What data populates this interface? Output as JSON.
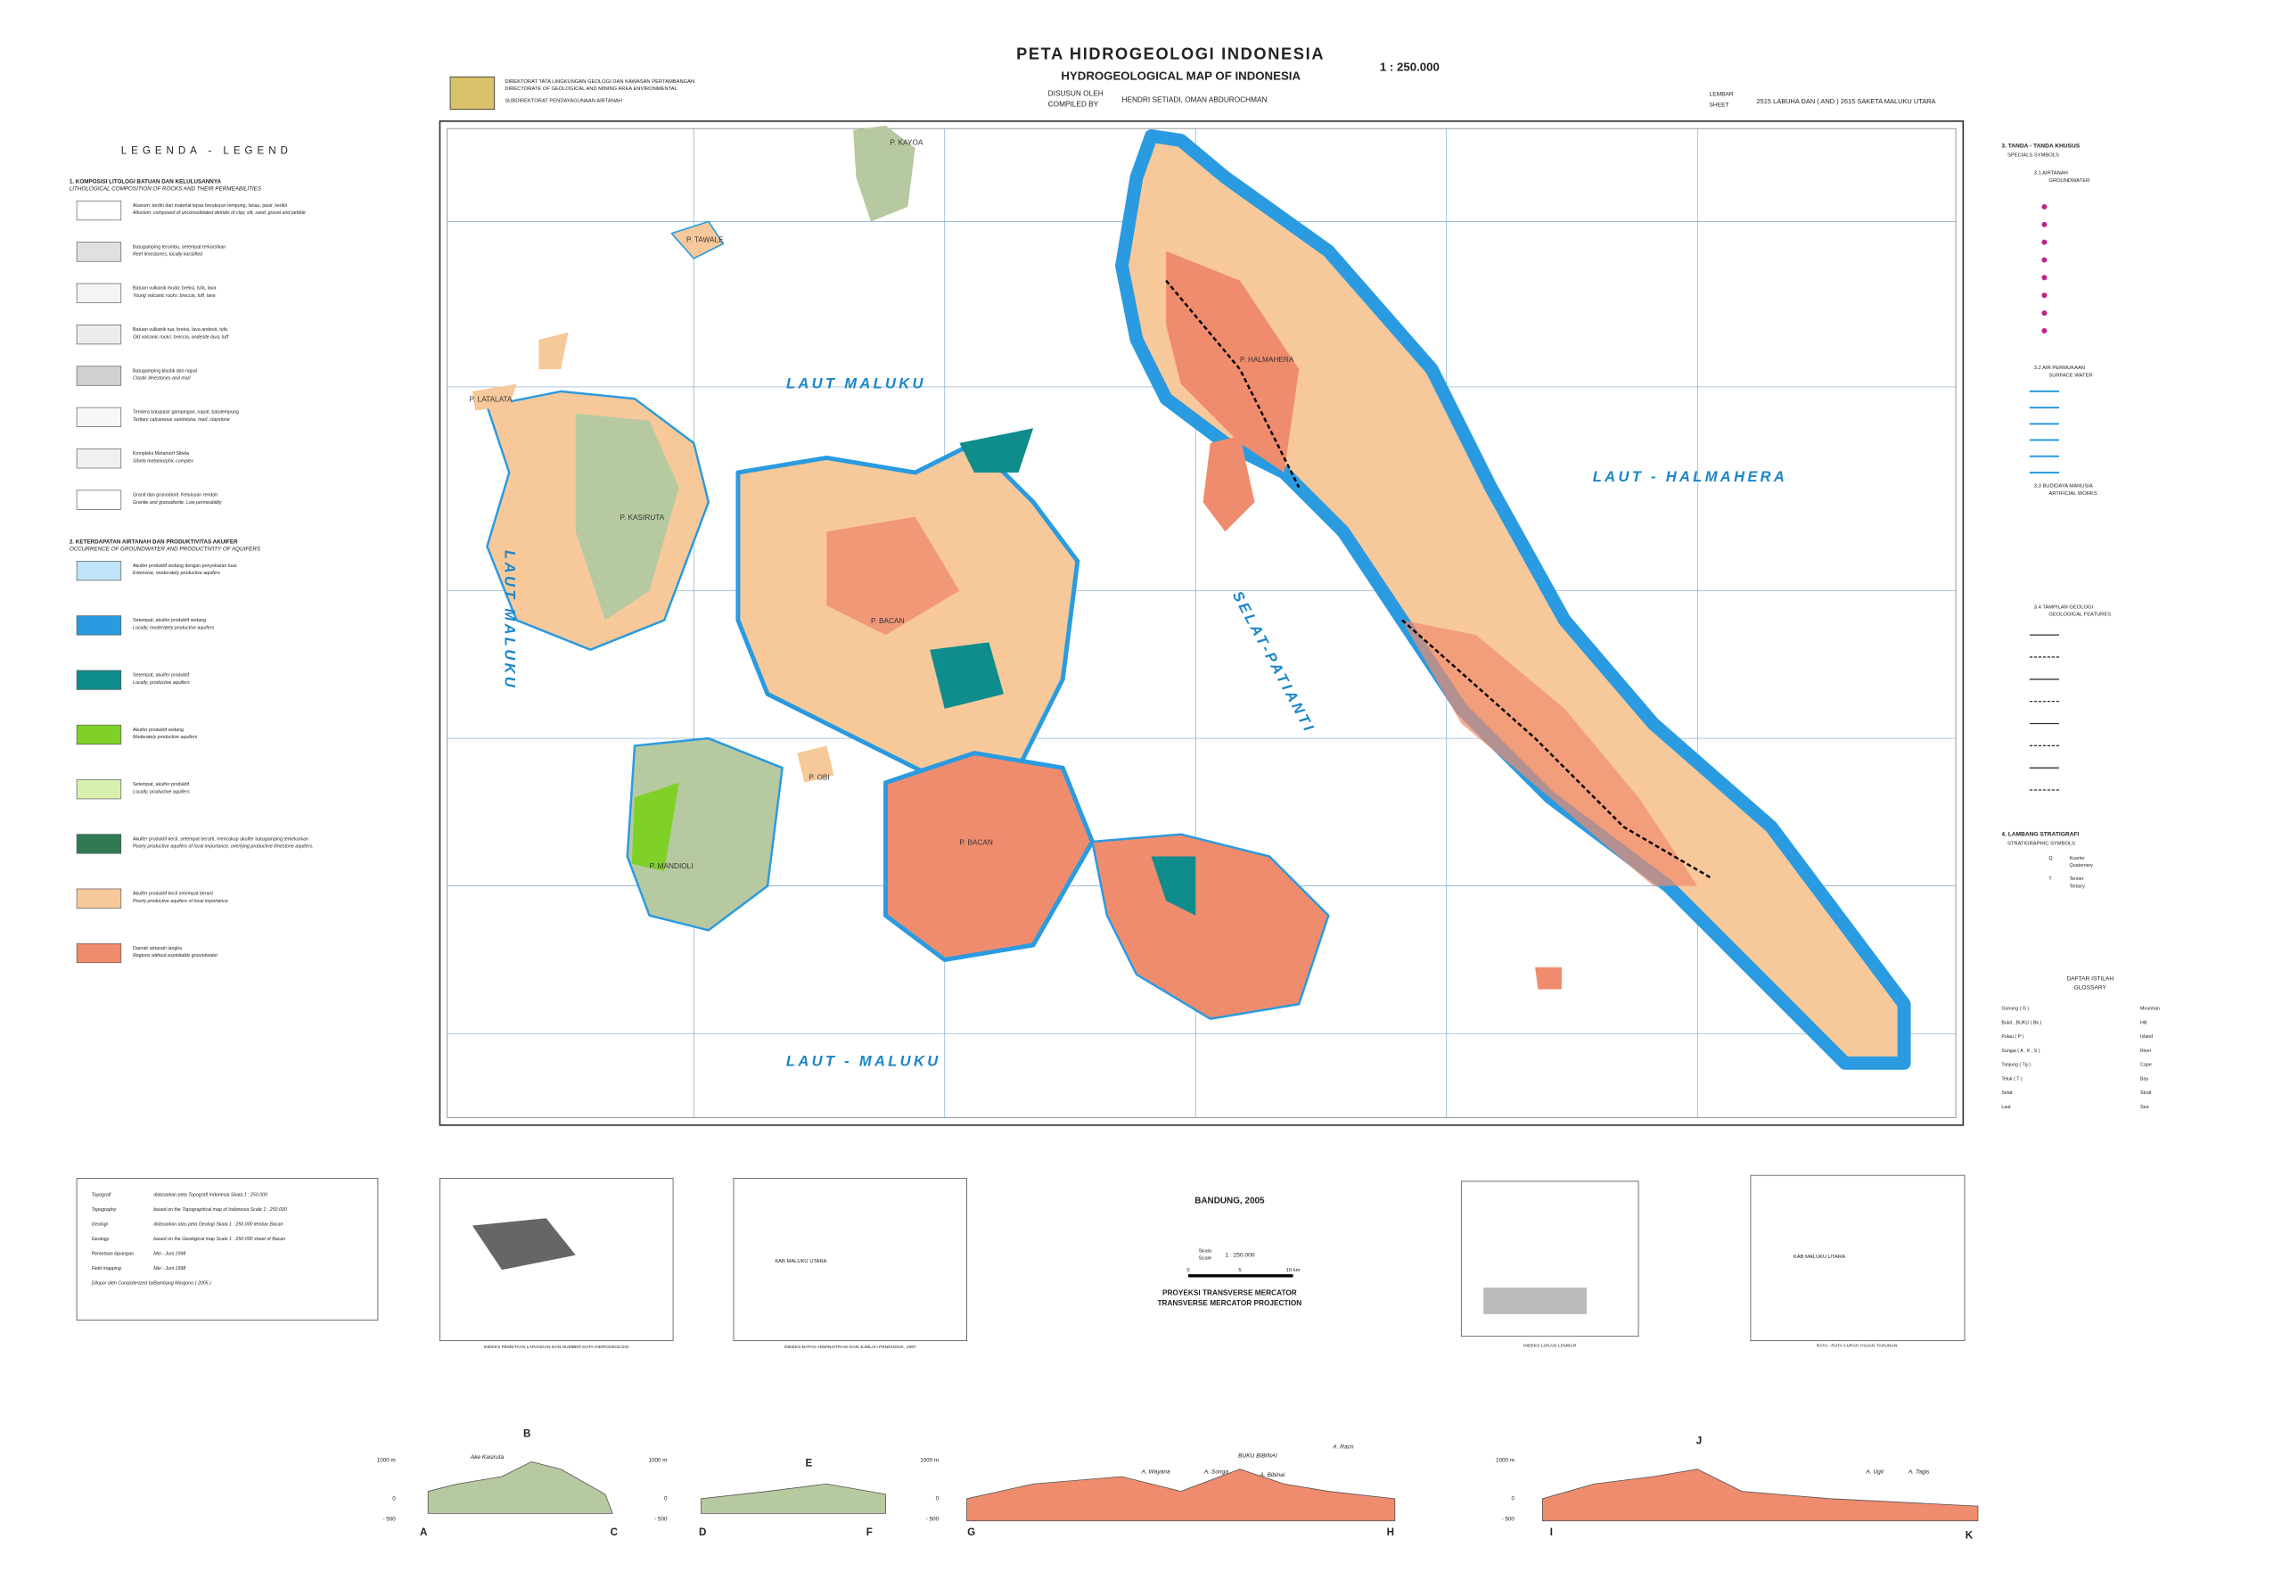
{
  "header": {
    "title": "PETA HIDROGEOLOGI INDONESIA",
    "subtitle": "HYDROGEOLOGICAL MAP OF INDONESIA",
    "scale": "1 : 250.000",
    "agency": [
      "DIREKTORAT TATA LINGKUNGAN GEOLOGI DAN KAWASAN PERTAMBANGAN",
      "DIRECTORATE OF GEOLOGICAL AND MINING AREA ENVIRONMENTAL",
      "SUBDIREKTORAT PENDAYAGUNAAN AIRTANAH"
    ],
    "compiled_label": [
      "DISUSUN OLEH",
      "COMPILED BY"
    ],
    "compiled_by": "HENDRI SETIADI, OMAN ABDUROCHMAN",
    "sheet_label": [
      "LEMBAR",
      "SHEET"
    ],
    "sheet": "2515 LABUHA DAN ( AND ) 2615 SAKETA MALUKU UTARA"
  },
  "legend": {
    "title": "LEGENDA - LEGEND",
    "sections": [
      {
        "heading": [
          "1. KOMPOSISI LITOLOGI BATUAN DAN KELULUSANNYA",
          "LITHOLOGICAL COMPOSITION OF ROCKS AND THEIR PERMEABILITIES"
        ],
        "items": [
          {
            "text": [
              "Aluvium: terdiri dari material lepas berukuran lempung, lanau, pasir, kerikil",
              "Alluvium: composed of unconsolidated detrials of clay, silt, sand, gravel and pebble"
            ],
            "color": "#ffffff"
          },
          {
            "text": [
              "Batugamping terumbu, setempat terkarstkan",
              "Reef limestones, locally karstified"
            ],
            "color": "#e0e0e0"
          },
          {
            "text": [
              "Batuan vulkanik muda: breksi, tufa, lava",
              "Young volcanic rocks: breccia, tuff, lava"
            ],
            "color": "#f4f4f4"
          },
          {
            "text": [
              "Batuan vulkanik tua: breksi, lava andesit, tufa",
              "Old volcanic rocks: breccia, andesite lava, tuff"
            ],
            "color": "#ececec"
          },
          {
            "text": [
              "Batugamping klastik dan napal",
              "Clastic limestones and marl"
            ],
            "color": "#d0d0d0"
          },
          {
            "text": [
              "Tersiera batupasir gampingan, napal, batulempung",
              "Tertiary calcareous sandstone, marl, claystone"
            ],
            "color": "#f8f8f8"
          },
          {
            "text": [
              "Kompleks Metamorf Sibela",
              "Sibela metamorphic complex"
            ],
            "color": "#f0f0f0"
          },
          {
            "text": [
              "Granit dan granodiorit. Kelulusan rendah",
              "Granite and granodiorite. Low permeability"
            ],
            "color": "#ffffff"
          }
        ]
      },
      {
        "heading": [
          "2. KETERDAPATAN AIRTANAH DAN PRODUKTIVITAS AKUIFER",
          "OCCURRENCE OF GROUNDWATER AND PRODUCTIVITY OF AQUIFERS"
        ],
        "items": [
          {
            "text": [
              "Akuifer produktif sedang dengan penyebaran luas",
              "Extensive, moderately productive aquifers"
            ],
            "color": "#bfe3f7"
          },
          {
            "text": [
              "Setempat, akuifer produktif sedang",
              "Locally, moderately productive aquifers"
            ],
            "color": "#2a9be0"
          },
          {
            "text": [
              "Setempat, akuifer produktif",
              "Locally, productive aquifers"
            ],
            "color": "#0f8c8c"
          },
          {
            "text": [
              "Akuifer produktif sedang",
              "Moderately productive aquifers"
            ],
            "color": "#7fd128"
          },
          {
            "text": [
              "Setempat, akuifer produktif",
              "Locally, productive aquifers"
            ],
            "color": "#d7f0b0"
          },
          {
            "text": [
              "Akuifer produktif kecil, setempat berarti, mencakup akuifer batugamping terkekarkan",
              "Poorly productive aquifers of local importance, overlying productive limestone aquifers."
            ],
            "color": "#2f7a52"
          },
          {
            "text": [
              "Akuifer produktif kecil setempat berarti",
              "Poorly productive aquifers of local importance"
            ],
            "color": "#f7c99a"
          },
          {
            "text": [
              "Daerah airtanah langka",
              "Regions without exploitable groundwater"
            ],
            "color": "#ef8c6e"
          }
        ]
      }
    ]
  },
  "specials": {
    "title": [
      "3. TANDA - TANDA KHUSUS",
      "SPECIALS SYMBOLS"
    ],
    "groups": [
      [
        "3.1  AIRTANAH",
        "GROUNDWATER"
      ],
      [
        "3.2  AIR PERMUKAAN",
        "SURFACE WATER"
      ],
      [
        "3.3  BUDIDAYA MANUSIA",
        "ARTIFICIAL WORKS"
      ],
      [
        "3.4  TAMPILAN GEOLOGI",
        "GEOLOGICAL FEATURES"
      ]
    ],
    "strat_title": [
      "4. LAMBANG STRATIGRAFI",
      "STRATIGRAPHIC SYMBOLS"
    ],
    "strat": [
      [
        "Q",
        "Kuarter",
        "Quaternary"
      ],
      [
        "T",
        "Tersier",
        "Tertiary"
      ]
    ]
  },
  "glossary": {
    "title": [
      "DAFTAR ISTILAH",
      "GLOSSARY"
    ],
    "rows": [
      [
        "Gunung ( G )",
        "Mountain"
      ],
      [
        "Bukit , BUKU ( Bk )",
        "Hill"
      ],
      [
        "Pulau ( P )",
        "Island"
      ],
      [
        "Sungai ( A , K , S )",
        "River"
      ],
      [
        "Tanjung ( Tg )",
        "Cape"
      ],
      [
        "Teluk ( T )",
        "Bay"
      ],
      [
        "Selat",
        "Strait"
      ],
      [
        "Laut",
        "Sea"
      ]
    ]
  },
  "map": {
    "labels": [
      "LAUT MALUKU",
      "LAUT - HALMAHERA",
      "SELAT-PATIANTI",
      "LAUT MALUKU",
      "LAUT - MALUKU",
      "P. HALMAHERA",
      "P. BACAN",
      "P. KASIRUTA",
      "P. MANDIOLI",
      "P. BACAN",
      "P. KAYOA",
      "P. TAWALE",
      "P. LATALATA",
      "P. OBI"
    ]
  },
  "footer": {
    "notes": [
      [
        "Topografi",
        "didasarkan peta Topografi Indonesia Skala 1 : 250.000"
      ],
      [
        "Topography",
        "based on the Topographical map of Indonesia Scale 1 : 250.000"
      ],
      [
        "Geologi",
        "didasarkan atas peta Geologi Skala 1 : 250.000 lembar Bacan"
      ],
      [
        "Geology",
        "based on the Geological map Scale 1 : 250.000 sheet of Bacan"
      ],
      [
        "Pemetaan lapangan",
        "Mei - Juni 1998"
      ],
      [
        "Field mapping",
        "Mei - Juni 1998"
      ],
      [
        "Dilopor oleh Computerized by",
        "Bambang Margono ( 2005 )"
      ]
    ],
    "place": "BANDUNG, 2005",
    "scale_label": [
      "Skala",
      "Scale"
    ],
    "scale": "1 : 250.000",
    "scale_ticks": [
      "0",
      "5",
      "10 km"
    ],
    "projection": [
      "PROYEKSI TRANSVERSE MERCATOR",
      "TRANSVERSE MERCATOR PROJECTION"
    ],
    "inset_captions": [
      "INDEKS PEMETAAN LAPANGAN DAN SUMBER DATA HIDROGEOLOGI",
      "INDEKS BATAS ADMINISTRASI DAN JUMLAH PENDUDUK, 1997",
      "INDEKS LOKASI LEMBAR",
      "RATA - RATA CURAH HUJAN TAHUNAN"
    ],
    "inset_labels": [
      "KAB MALUKU UTARA",
      "KAB MALUKU UTARA"
    ]
  },
  "sections": {
    "letters": [
      "A",
      "B",
      "C",
      "D",
      "E",
      "F",
      "G",
      "H",
      "I",
      "J",
      "K"
    ],
    "elevations": [
      "1000 m",
      "0",
      "- 500"
    ],
    "names": [
      "Ake Kasiruta",
      "A. Wayana",
      "A. Songa",
      "BUKU BIBINAI",
      "A. Bibinai",
      "A. Racn",
      "A. Ugil",
      "A. Tagis"
    ]
  }
}
